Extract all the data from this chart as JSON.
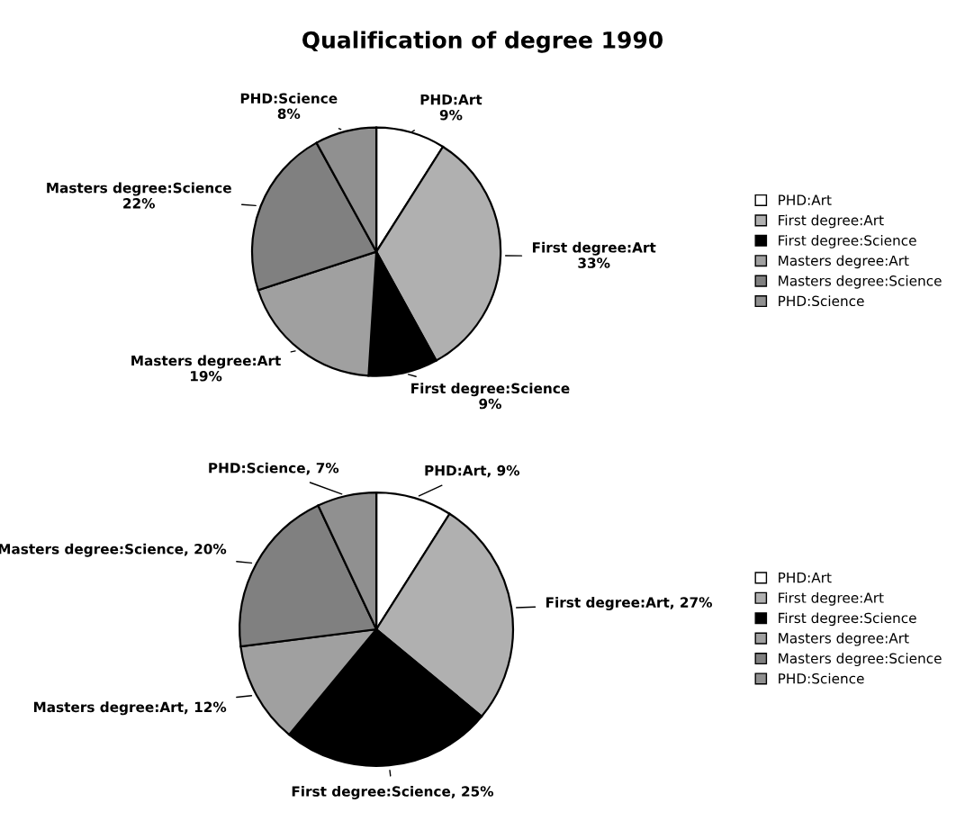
{
  "chart_data": [
    {
      "type": "pie",
      "title": "Qualification of degree 1990",
      "categories": [
        "PHD:Art",
        "First degree:Art",
        "First degree:Science",
        "Masters degree:Art",
        "Masters degree:Science",
        "PHD:Science"
      ],
      "values": [
        9,
        33,
        9,
        19,
        22,
        8
      ],
      "colors": [
        "#ffffff",
        "#b0b0b0",
        "#000000",
        "#a0a0a0",
        "#808080",
        "#909090"
      ],
      "value_labels": [
        "PHD:Art\n9%",
        "First degree:Art\n33%",
        "First degree:Science\n9%",
        "Masters degree:Art\n19%",
        "Masters degree:Science\n22%",
        "PHD:Science\n8%"
      ],
      "legend": "right"
    },
    {
      "type": "pie",
      "categories": [
        "PHD:Art",
        "First degree:Art",
        "First degree:Science",
        "Masters degree:Art",
        "Masters degree:Science",
        "PHD:Science"
      ],
      "values": [
        9,
        27,
        25,
        12,
        20,
        7
      ],
      "colors": [
        "#ffffff",
        "#b0b0b0",
        "#000000",
        "#a0a0a0",
        "#808080",
        "#909090"
      ],
      "value_labels": [
        "PHD:Art, 9%",
        "First degree:Art, 27%",
        "First degree:Science, 25%",
        "Masters degree:Art, 12%",
        "Masters degree:Science, 20%",
        "PHD:Science, 7%"
      ],
      "legend": "right"
    }
  ]
}
